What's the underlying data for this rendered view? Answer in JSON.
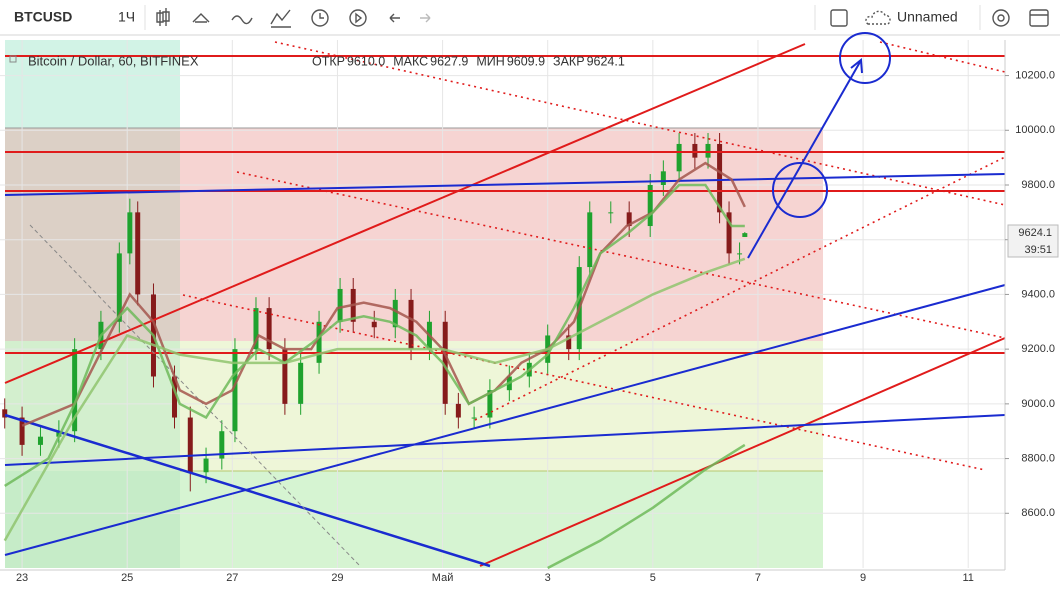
{
  "toolbar": {
    "symbol": "BTCUSD",
    "interval": "1Ч",
    "layout_name": "Unnamed"
  },
  "legend": {
    "ohlc": [
      {
        "label": "ОТКР",
        "value": "9610.0"
      },
      {
        "label": "МАКС",
        "value": "9627.9"
      },
      {
        "label": "МИН",
        "value": "9609.9"
      },
      {
        "label": "ЗАКР",
        "value": "9624.1"
      }
    ]
  },
  "price_tag": {
    "price": "9624.1",
    "countdown": "39:51"
  },
  "chart_data": {
    "type": "candlestick",
    "title": "Bitcoin / Dollar, 60, BITFINEX",
    "x": [
      22.67,
      23.0,
      23.35,
      23.7,
      24.0,
      24.5,
      24.85,
      25.05,
      25.2,
      25.5,
      25.9,
      26.2,
      26.5,
      26.8,
      27.05,
      27.45,
      27.7,
      28.0,
      28.3,
      28.65,
      29.05,
      29.3,
      29.7,
      30.1,
      30.4,
      30.75,
      31.05,
      31.3,
      31.6,
      31.9,
      32.27,
      32.65,
      33.0,
      33.4,
      33.6,
      33.8,
      34.2,
      34.55,
      34.95,
      35.2,
      35.5,
      35.8,
      36.05,
      36.27,
      36.45,
      36.65,
      36.75
    ],
    "open": [
      8980,
      8950,
      8850,
      8880,
      8900,
      9200,
      9300,
      9550,
      9700,
      9400,
      9100,
      8950,
      8750,
      8800,
      8900,
      9200,
      9350,
      9200,
      9000,
      9150,
      9300,
      9420,
      9300,
      9280,
      9380,
      9200,
      9300,
      9000,
      8950,
      8950,
      9050,
      9100,
      9150,
      9250,
      9200,
      9500,
      9700,
      9700,
      9650,
      9800,
      9850,
      9950,
      9900,
      9950,
      9700,
      9550,
      9610
    ],
    "high": [
      9020,
      8990,
      8920,
      8940,
      9240,
      9340,
      9590,
      9750,
      9740,
      9440,
      9140,
      8990,
      8840,
      8940,
      9240,
      9390,
      9390,
      9240,
      9190,
      9340,
      9460,
      9460,
      9340,
      9420,
      9420,
      9340,
      9340,
      9040,
      8990,
      9090,
      9140,
      9190,
      9290,
      9290,
      9540,
      9740,
      9740,
      9740,
      9840,
      9890,
      9990,
      9990,
      9990,
      9990,
      9740,
      9590,
      9627.9
    ],
    "low": [
      8910,
      8810,
      8810,
      8840,
      8860,
      9160,
      9260,
      9510,
      9360,
      9060,
      8910,
      8680,
      8710,
      8760,
      8860,
      9160,
      9160,
      8960,
      8960,
      9110,
      9260,
      9260,
      9240,
      9240,
      9160,
      9160,
      8960,
      8910,
      8910,
      8910,
      9010,
      9060,
      9110,
      9160,
      9160,
      9460,
      9660,
      9610,
      9610,
      9760,
      9810,
      9860,
      9860,
      9660,
      9510,
      9510,
      9609.9
    ],
    "close": [
      8950,
      8850,
      8880,
      8900,
      9200,
      9300,
      9550,
      9700,
      9400,
      9100,
      8950,
      8750,
      8800,
      8900,
      9200,
      9350,
      9200,
      9000,
      9150,
      9300,
      9420,
      9300,
      9280,
      9380,
      9200,
      9300,
      9000,
      8950,
      8950,
      9050,
      9100,
      9150,
      9250,
      9200,
      9500,
      9700,
      9700,
      9650,
      9800,
      9850,
      9950,
      9900,
      9950,
      9700,
      9550,
      9550,
      9624.1
    ],
    "up_color": "#1fa22e",
    "down_color": "#861b1b",
    "lines": [
      {
        "color": "#a4564d",
        "x": [
          23.0,
          24.0,
          25.05,
          25.5,
          26.0,
          26.5,
          27.0,
          27.5,
          28.0,
          28.5,
          29.0,
          29.5,
          30.0,
          30.5,
          31.0,
          31.5,
          32.0,
          32.5,
          33.0,
          33.5,
          34.0,
          34.5,
          35.0,
          35.5,
          36.0,
          36.5,
          36.75
        ],
        "values": [
          8920,
          9000,
          9400,
          9300,
          9050,
          9000,
          9050,
          9250,
          9200,
          9200,
          9350,
          9370,
          9350,
          9300,
          9200,
          9000,
          9050,
          9150,
          9200,
          9300,
          9550,
          9650,
          9700,
          9820,
          9880,
          9820,
          9720
        ]
      },
      {
        "color": "#6fba5a",
        "x": [
          22.67,
          23.5,
          24.0,
          24.5,
          25.0,
          25.5,
          26.0,
          26.5,
          27.0,
          27.5,
          28.0,
          28.5,
          29.0,
          29.5,
          30.0,
          30.5,
          31.0,
          31.5,
          32.0,
          32.5,
          33.0,
          33.5,
          34.0,
          34.5,
          35.0,
          35.5,
          36.0,
          36.5,
          36.75
        ],
        "values": [
          8700,
          8800,
          9000,
          9250,
          9350,
          9250,
          9000,
          8950,
          9100,
          9200,
          9150,
          9220,
          9300,
          9320,
          9300,
          9250,
          9150,
          9000,
          9050,
          9100,
          9180,
          9350,
          9550,
          9620,
          9700,
          9800,
          9800,
          9650,
          9650
        ]
      },
      {
        "color": "#8fc46e",
        "x": [
          22.67,
          24.0,
          25.0,
          26.0,
          27.0,
          28.0,
          29.0,
          30.0,
          31.0,
          32.0,
          33.0,
          34.0,
          35.0,
          36.0,
          36.75
        ],
        "values": [
          8500,
          8950,
          9250,
          9180,
          9150,
          9150,
          9200,
          9200,
          9200,
          9150,
          9200,
          9300,
          9400,
          9480,
          9530
        ]
      },
      {
        "color": "#6fba5a",
        "x": [
          33.0,
          34.0,
          35.0,
          36.0,
          36.75
        ],
        "values": [
          8400,
          8500,
          8620,
          8760,
          8850
        ]
      }
    ],
    "xlim": [
      22.58,
      41.7
    ],
    "ylim": [
      8400,
      10330
    ],
    "xticks": [
      23,
      25,
      27,
      29,
      {
        "value": 31,
        "label": "Май"
      },
      {
        "value": 33,
        "label": "3"
      },
      {
        "value": 35,
        "label": "5"
      },
      {
        "value": 37,
        "label": "7"
      },
      {
        "value": 39,
        "label": "9"
      },
      {
        "value": 41,
        "label": "11"
      }
    ],
    "yticks": [
      {
        "value": 8600,
        "label": "8600.0"
      },
      {
        "value": 8800,
        "label": "8800.0"
      },
      {
        "value": 9000,
        "label": "9000.0"
      },
      {
        "value": 9200,
        "label": "9200.0"
      },
      {
        "value": 9400,
        "label": "9400.0"
      },
      {
        "value": 9600,
        "label": "9600.0"
      },
      {
        "value": 9800,
        "label": "9800.0"
      },
      {
        "value": 10000,
        "label": "10000.0"
      },
      {
        "value": 10200,
        "label": "10200.0"
      }
    ],
    "grid": true
  }
}
